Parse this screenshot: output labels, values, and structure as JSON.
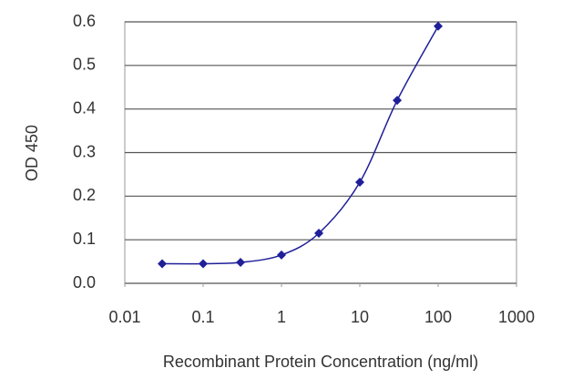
{
  "chart_data": {
    "type": "line",
    "x_label": "Recombinant Protein Concentration (ng/ml)",
    "y_label": "OD 450",
    "x": [
      0.03,
      0.1,
      0.3,
      1,
      3,
      10,
      30,
      100
    ],
    "series": [
      {
        "color": "#1f1f99",
        "values": [
          0.045,
          0.045,
          0.048,
          0.065,
          0.115,
          0.232,
          0.42,
          0.59
        ]
      }
    ],
    "xlog": true,
    "xlim": [
      0.01,
      1000
    ],
    "xticks": [
      0.01,
      0.1,
      1,
      10,
      100,
      1000
    ],
    "ylim": [
      0,
      0.6
    ],
    "yticks": [
      {
        "value": 0,
        "label": "0.0"
      },
      0.1,
      0.2,
      0.3,
      0.4,
      0.5,
      0.6
    ],
    "grid": true
  }
}
